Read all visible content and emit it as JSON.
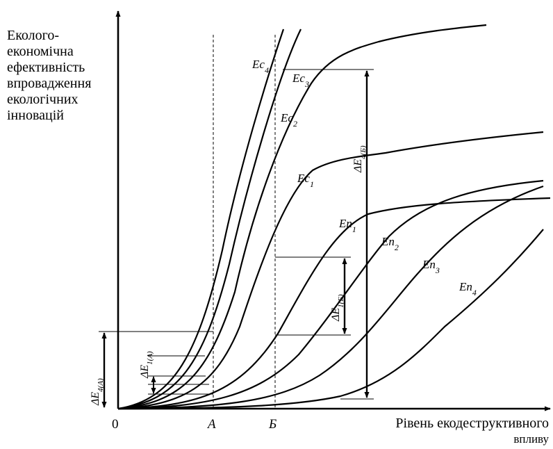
{
  "y_axis_title": [
    "Еколого-",
    "економічна",
    "ефективність",
    "впровадження",
    "екологічних",
    "інновацій"
  ],
  "x_axis_title": [
    "Рівень екодеструктивного",
    "впливу"
  ],
  "origin_label": "0",
  "x_ticks": {
    "a": "А",
    "b": "Б"
  },
  "curve_labels": {
    "ec": [
      {
        "base": "Ec",
        "sub": "1"
      },
      {
        "base": "Ec",
        "sub": "2"
      },
      {
        "base": "Ec",
        "sub": "3"
      },
      {
        "base": "Ec",
        "sub": "4"
      }
    ],
    "en": [
      {
        "base": "En",
        "sub": "1"
      },
      {
        "base": "En",
        "sub": "2"
      },
      {
        "base": "En",
        "sub": "3"
      },
      {
        "base": "En",
        "sub": "4"
      }
    ]
  },
  "deltas": {
    "e4a": {
      "base": "ΔE",
      "sub": "4(А)"
    },
    "e1a": {
      "base": "ΔE",
      "sub": "1(А)"
    },
    "e4b": {
      "base": "ΔE",
      "sub": "4(Б)"
    },
    "e1b": {
      "base": "ΔE",
      "sub": "1(Б)"
    }
  },
  "colors": {
    "ink": "#000000",
    "background": "#ffffff"
  }
}
